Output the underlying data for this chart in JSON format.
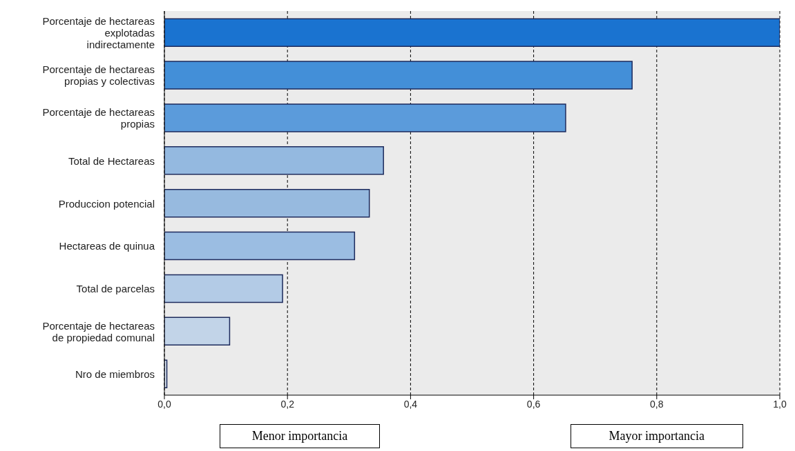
{
  "chart_data": {
    "type": "bar",
    "orientation": "horizontal",
    "categories": [
      "Porcentaje de hectareas explotadas indirectamente",
      "Porcentaje de hectareas propias y colectivas",
      "Porcentaje de hectareas propias",
      "Total de Hectareas",
      "Produccion potencial",
      "Hectareas de quinua",
      "Total de parcelas",
      "Porcentaje de hectareas de propiedad comunal",
      "Nro de miembros"
    ],
    "values": [
      1.0,
      0.76,
      0.652,
      0.356,
      0.333,
      0.309,
      0.192,
      0.106,
      0.004
    ],
    "colors": [
      "#1a73d0",
      "#438fd8",
      "#5b9bdb",
      "#94b9e0",
      "#97badf",
      "#9bbde2",
      "#b3cbe6",
      "#c2d4e8",
      "#dce6f0"
    ],
    "xlim": [
      0,
      1
    ],
    "xticks": [
      {
        "value": 0,
        "label": "0,0"
      },
      {
        "value": 0.2,
        "label": "0,2"
      },
      {
        "value": 0.4,
        "label": "0,4"
      },
      {
        "value": 0.6,
        "label": "0,6"
      },
      {
        "value": 0.8,
        "label": "0,8"
      },
      {
        "value": 1,
        "label": "1,0"
      }
    ],
    "grid": "x",
    "annotations": [
      "Menor importancia",
      "Mayor importancia"
    ]
  }
}
